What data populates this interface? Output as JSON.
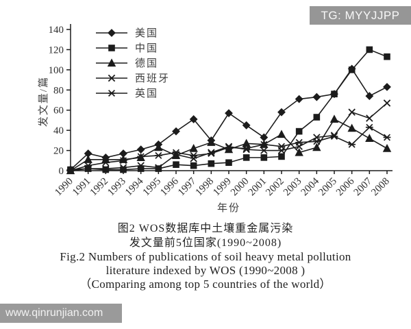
{
  "watermark_top": "TG: MYYJJPP",
  "watermark_bottom": "www.qinrunjian.com",
  "caption": {
    "zh_line1": "图2  WOS数据库中土壤重金属污染",
    "zh_line2": "发文量前5位国家(1990~2008)",
    "en_line1": "Fig.2  Numbers of publications of soil heavy metal pollution",
    "en_line2": "literature indexed by WOS (1990~2008 )",
    "en_line3": "（Comparing among top 5 countries of the world）"
  },
  "chart_data": {
    "type": "line",
    "title": "",
    "xlabel": "年份",
    "ylabel": "发文量/篇",
    "ylim": [
      0,
      140
    ],
    "ytick_step": 20,
    "grid": false,
    "legend_position": "top-left-inside",
    "line_color": "#1c1c1c",
    "x": [
      1990,
      1991,
      1992,
      1993,
      1994,
      1995,
      1996,
      1997,
      1998,
      1999,
      2000,
      2001,
      2002,
      2003,
      2004,
      2005,
      2006,
      2007,
      2008
    ],
    "series": [
      {
        "id": "usa",
        "name": "美国",
        "marker": "diamond",
        "values": [
          1,
          17,
          13,
          17,
          21,
          26,
          39,
          51,
          30,
          57,
          45,
          33,
          58,
          71,
          73,
          76,
          101,
          74,
          83
        ]
      },
      {
        "id": "china",
        "name": "中国",
        "marker": "square",
        "values": [
          1,
          2,
          1,
          1,
          2,
          2,
          6,
          5,
          7,
          8,
          13,
          13,
          14,
          39,
          53,
          76,
          100,
          120,
          113
        ]
      },
      {
        "id": "germany",
        "name": "德国",
        "marker": "triangle",
        "values": [
          0,
          11,
          11,
          11,
          13,
          23,
          15,
          22,
          28,
          21,
          27,
          26,
          36,
          18,
          23,
          51,
          42,
          32,
          22
        ]
      },
      {
        "id": "spain",
        "name": "西班牙",
        "marker": "x",
        "values": [
          0,
          2,
          2,
          3,
          5,
          3,
          16,
          12,
          18,
          24,
          21,
          20,
          20,
          24,
          33,
          35,
          58,
          52,
          67
        ]
      },
      {
        "id": "uk",
        "name": "英国",
        "marker": "asterisk",
        "values": [
          0,
          5,
          8,
          10,
          14,
          15,
          18,
          15,
          17,
          23,
          22,
          26,
          24,
          28,
          29,
          34,
          26,
          43,
          33
        ]
      }
    ]
  }
}
